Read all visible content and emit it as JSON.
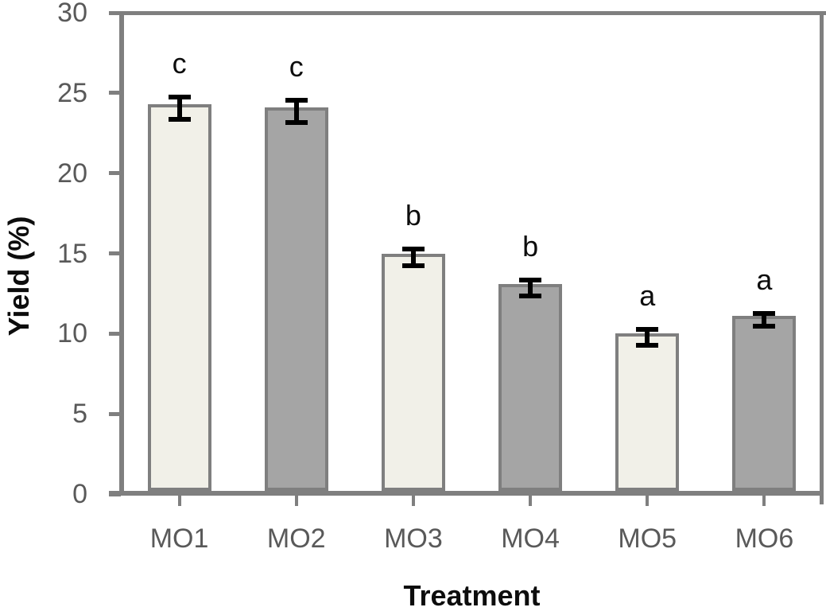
{
  "chart_data": {
    "type": "bar",
    "title": "",
    "xlabel": "Treatment",
    "ylabel": "Yield (%)",
    "categories": [
      "MO1",
      "MO2",
      "MO3",
      "MO4",
      "MO5",
      "MO6"
    ],
    "values": [
      24.3,
      24.1,
      15.0,
      13.1,
      10.0,
      11.1
    ],
    "errors": [
      0.7,
      0.7,
      0.5,
      0.5,
      0.5,
      0.4
    ],
    "sig_letters": [
      "c",
      "c",
      "b",
      "b",
      "a",
      "a"
    ],
    "fills": [
      "light",
      "dark",
      "light",
      "dark",
      "light",
      "dark"
    ],
    "ylim": [
      0,
      30
    ],
    "ytick_step": 5,
    "ytick_labels": [
      "0",
      "5",
      "10",
      "15",
      "20",
      "25",
      "30"
    ],
    "grid": false,
    "legend": "none",
    "error_bars": "caps-both-ends",
    "colors": {
      "bar_fill_light": "#F1F0E8",
      "bar_fill_dark": "#A5A5A5",
      "bar_border": "#7F7F7F",
      "axis": "#7F7F7F",
      "tick_label": "#595959",
      "error_bar": "#000000",
      "letter": "#0d0d0d",
      "background": "#FFFFFF"
    }
  }
}
